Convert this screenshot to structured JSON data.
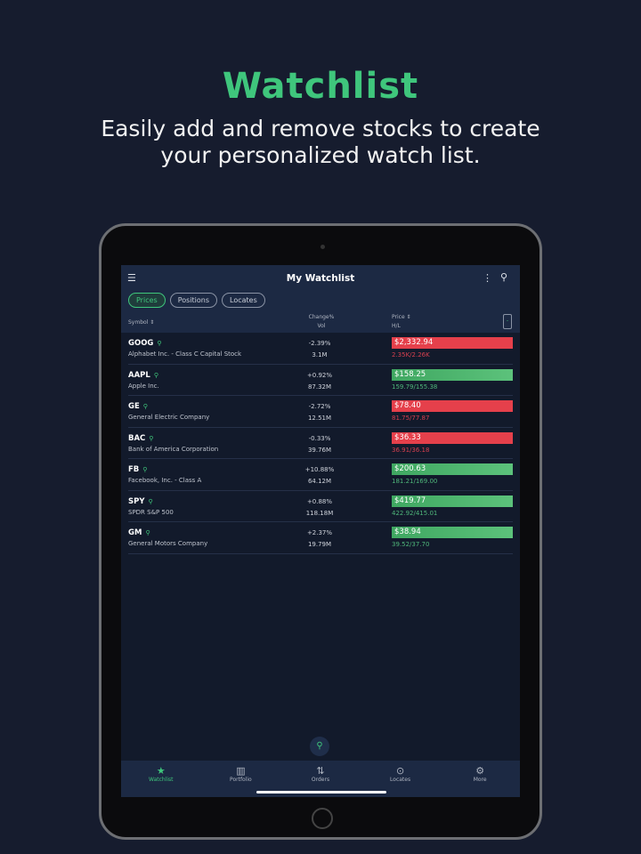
{
  "hero": {
    "title": "Watchlist",
    "subtitle_1": "Easily add and remove stocks to create",
    "subtitle_2": "your personalized watch list."
  },
  "header": {
    "title": "My Watchlist"
  },
  "filters": [
    "Prices",
    "Positions",
    "Locates"
  ],
  "columns": {
    "symbol": "Symbol",
    "change": "Change%",
    "vol": "Vol",
    "price": "Price",
    "hl": "H/L"
  },
  "colors": {
    "accent": "#3fc67c",
    "down": "#e5404b",
    "up": "#4caf6a"
  },
  "rows": [
    {
      "symbol": "GOOG",
      "name": "Alphabet Inc. - Class C Capital Stock",
      "change": "-2.39%",
      "vol": "3.1M",
      "price": "$2,332.94",
      "hl": "2.35K/2.26K",
      "dir": "down"
    },
    {
      "symbol": "AAPL",
      "name": "Apple Inc.",
      "change": "+0.92%",
      "vol": "87.32M",
      "price": "$158.25",
      "hl": "159.79/155.38",
      "dir": "up"
    },
    {
      "symbol": "GE",
      "name": "General Electric Company",
      "change": "-2.72%",
      "vol": "12.51M",
      "price": "$78.40",
      "hl": "81.75/77.87",
      "dir": "down"
    },
    {
      "symbol": "BAC",
      "name": "Bank of America Corporation",
      "change": "-0.33%",
      "vol": "39.76M",
      "price": "$36.33",
      "hl": "36.91/36.18",
      "dir": "down"
    },
    {
      "symbol": "FB",
      "name": "Facebook, Inc. - Class A",
      "change": "+10.88%",
      "vol": "64.12M",
      "price": "$200.63",
      "hl": "181.21/169.00",
      "dir": "up"
    },
    {
      "symbol": "SPY",
      "name": "SPDR S&P 500",
      "change": "+0.88%",
      "vol": "118.18M",
      "price": "$419.77",
      "hl": "422.92/415.01",
      "dir": "up"
    },
    {
      "symbol": "GM",
      "name": "General Motors Company",
      "change": "+2.37%",
      "vol": "19.79M",
      "price": "$38.94",
      "hl": "39.52/37.70",
      "dir": "up"
    }
  ],
  "tabs": [
    {
      "label": "Watchlist",
      "icon": "star-icon"
    },
    {
      "label": "Portfolio",
      "icon": "bar-chart-icon"
    },
    {
      "label": "Orders",
      "icon": "arrows-icon"
    },
    {
      "label": "Locates",
      "icon": "location-pin-icon"
    },
    {
      "label": "More",
      "icon": "gear-icon"
    }
  ]
}
